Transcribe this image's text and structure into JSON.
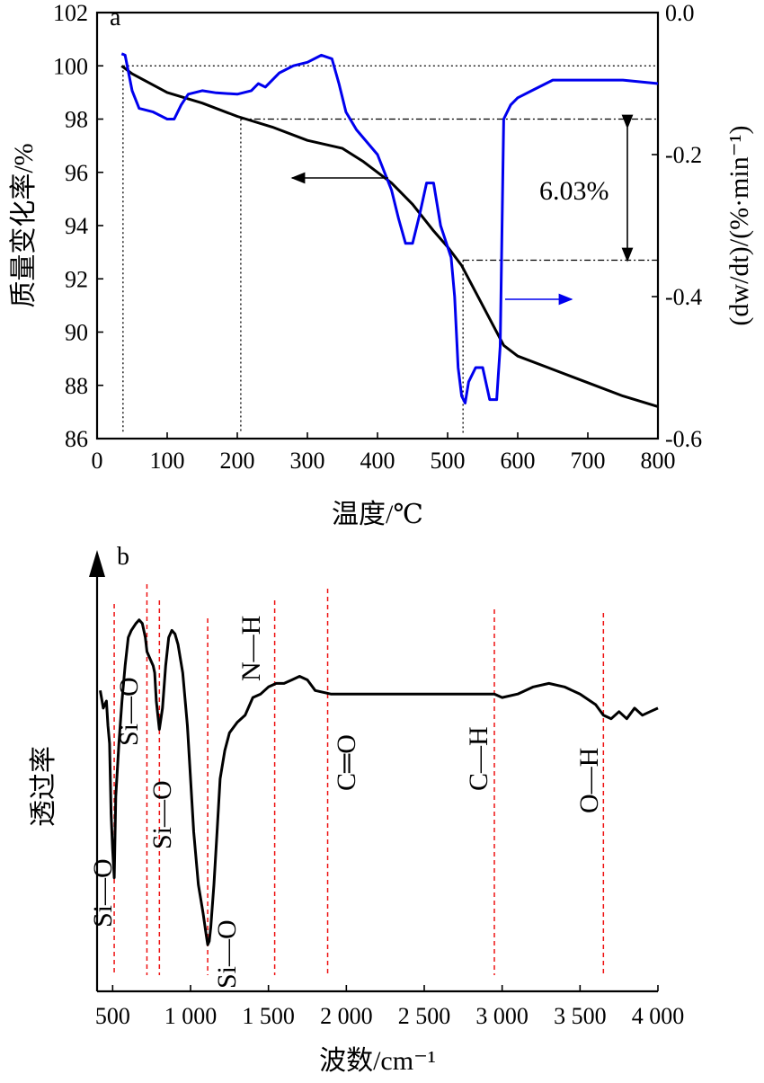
{
  "chart_data": [
    {
      "panel": "a",
      "type": "line",
      "xlabel": "温度/℃",
      "ylabel_left": "质量变化率/%",
      "ylabel_right": "(dw/dt)/(%·min⁻¹)",
      "xlim": [
        0,
        800
      ],
      "ylim_left": [
        86,
        102
      ],
      "ylim_right": [
        -0.6,
        0.0
      ],
      "x_ticks": [
        "0",
        "100",
        "200",
        "300",
        "400",
        "500",
        "600",
        "700",
        "800"
      ],
      "y_ticks_left": [
        "86",
        "88",
        "90",
        "92",
        "94",
        "96",
        "98",
        "100",
        "102"
      ],
      "y_ticks_right": [
        "-0.6",
        "-0.4",
        "-0.2",
        "0.0"
      ],
      "annotation": "6.03%",
      "reference_lines": {
        "horizontal_mass": [
          100,
          98,
          92.7
        ],
        "vertical_temp": [
          37,
          205,
          522
        ]
      },
      "series": [
        {
          "axis": "left",
          "color": "#000000",
          "x": [
            35,
            50,
            100,
            150,
            200,
            250,
            300,
            350,
            380,
            420,
            450,
            480,
            500,
            520,
            540,
            560,
            580,
            600,
            650,
            700,
            750,
            800
          ],
          "y": [
            100.0,
            99.7,
            99.0,
            98.6,
            98.1,
            97.7,
            97.2,
            96.9,
            96.4,
            95.6,
            94.8,
            93.8,
            93.2,
            92.5,
            91.5,
            90.5,
            89.5,
            89.1,
            88.6,
            88.1,
            87.6,
            87.2
          ]
        },
        {
          "axis": "right",
          "color": "#0000ee",
          "x": [
            35,
            40,
            50,
            60,
            80,
            100,
            110,
            120,
            130,
            150,
            170,
            200,
            220,
            230,
            240,
            260,
            280,
            300,
            320,
            335,
            345,
            355,
            370,
            400,
            420,
            430,
            440,
            450,
            460,
            470,
            480,
            490,
            500,
            505,
            510,
            515,
            520,
            525,
            530,
            540,
            550,
            560,
            570,
            575,
            580,
            590,
            600,
            620,
            650,
            700,
            750,
            800
          ],
          "y": [
            -0.058,
            -0.06,
            -0.11,
            -0.135,
            -0.14,
            -0.15,
            -0.15,
            -0.13,
            -0.115,
            -0.11,
            -0.113,
            -0.115,
            -0.11,
            -0.1,
            -0.105,
            -0.085,
            -0.075,
            -0.07,
            -0.06,
            -0.065,
            -0.1,
            -0.14,
            -0.165,
            -0.2,
            -0.25,
            -0.29,
            -0.325,
            -0.325,
            -0.285,
            -0.24,
            -0.24,
            -0.3,
            -0.33,
            -0.345,
            -0.4,
            -0.5,
            -0.54,
            -0.55,
            -0.52,
            -0.5,
            -0.5,
            -0.545,
            -0.545,
            -0.47,
            -0.15,
            -0.13,
            -0.12,
            -0.11,
            -0.095,
            -0.095,
            -0.095,
            -0.1
          ]
        }
      ]
    },
    {
      "panel": "b",
      "type": "line",
      "xlabel": "波数/cm⁻¹",
      "ylabel": "透过率",
      "xlim": [
        400,
        4000
      ],
      "ylim": [
        0,
        100
      ],
      "x_ticks": [
        "500",
        "1 000",
        "1 500",
        "2 000",
        "2 500",
        "3 000",
        "3 500",
        "4 000"
      ],
      "bands": [
        {
          "label": "Si—O",
          "wavenumber": 510
        },
        {
          "label": "Si—O",
          "wavenumber": 720
        },
        {
          "label": "Si—O",
          "wavenumber": 800
        },
        {
          "label": "Si—O",
          "wavenumber": 1110
        },
        {
          "label": "N—H",
          "wavenumber": 1540
        },
        {
          "label": "C═O",
          "wavenumber": 1880
        },
        {
          "label": "C—H",
          "wavenumber": 2950
        },
        {
          "label": "O—H",
          "wavenumber": 3650
        }
      ],
      "series": [
        {
          "color": "#000000",
          "x": [
            420,
            440,
            460,
            470,
            480,
            490,
            500,
            510,
            520,
            540,
            560,
            580,
            600,
            620,
            650,
            670,
            690,
            710,
            720,
            740,
            760,
            770,
            780,
            790,
            800,
            820,
            840,
            860,
            880,
            900,
            920,
            950,
            980,
            1000,
            1020,
            1050,
            1080,
            1100,
            1110,
            1120,
            1130,
            1150,
            1170,
            1190,
            1220,
            1250,
            1300,
            1350,
            1400,
            1450,
            1500,
            1550,
            1600,
            1650,
            1700,
            1750,
            1800,
            1900,
            2000,
            2200,
            2400,
            2600,
            2800,
            2950,
            3000,
            3100,
            3200,
            3300,
            3400,
            3500,
            3600,
            3650,
            3700,
            3750,
            3800,
            3850,
            3900,
            3950,
            4000
          ],
          "y": [
            75,
            70,
            72,
            65,
            60,
            40,
            30,
            22,
            45,
            60,
            72,
            82,
            90,
            92,
            94,
            95,
            94,
            90,
            86,
            84,
            82,
            80,
            72,
            68,
            64,
            70,
            82,
            90,
            92,
            91,
            88,
            80,
            65,
            50,
            35,
            20,
            12,
            6,
            3,
            4,
            8,
            20,
            35,
            50,
            58,
            63,
            66,
            68,
            73,
            74,
            76,
            77,
            77,
            78,
            79,
            78,
            75,
            74,
            74,
            74,
            74,
            74,
            74,
            74,
            73,
            74,
            76,
            77,
            76,
            74,
            71,
            68,
            67,
            69,
            67,
            70,
            68,
            69,
            70
          ]
        }
      ]
    }
  ]
}
